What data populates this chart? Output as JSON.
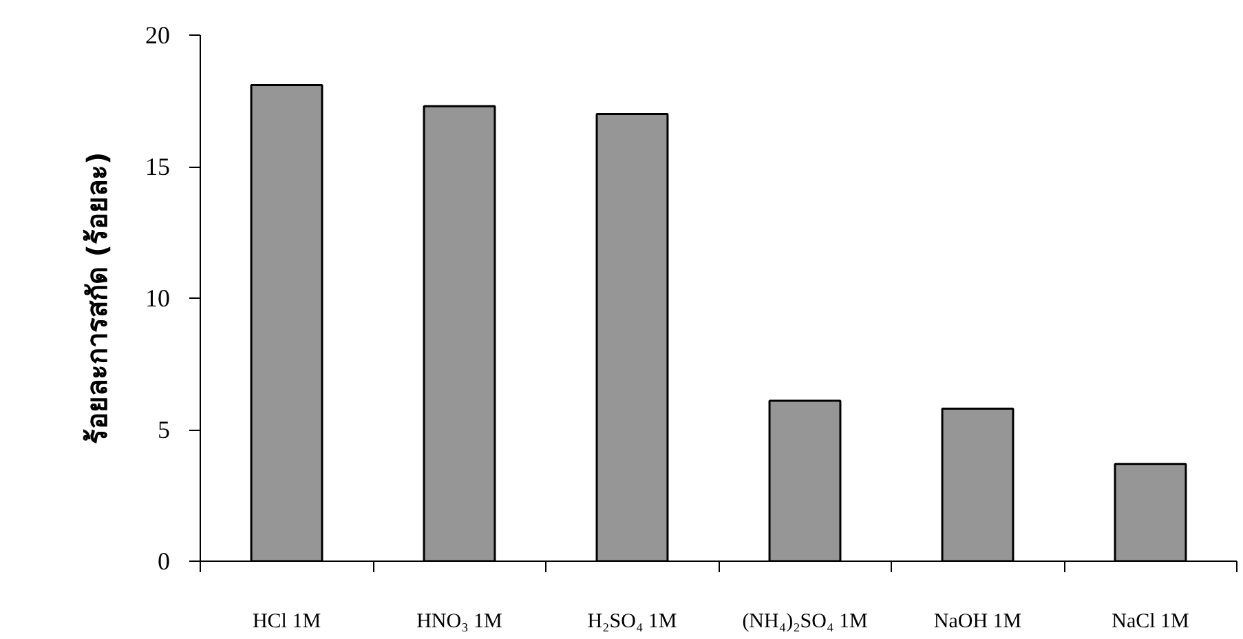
{
  "chart_data": {
    "type": "bar",
    "ylabel": "ร้อยละการสกัด (ร้อยละ)",
    "categories": [
      "HCl 1M",
      "HNO₃ 1M",
      "H₂SO₄ 1M",
      "(NH₄)₂SO₄ 1M",
      "NaOH 1M",
      "NaCl 1M"
    ],
    "values": [
      18.1,
      17.3,
      17.0,
      6.1,
      5.8,
      3.7
    ],
    "color": "#969696",
    "ylim": [
      0,
      20
    ],
    "yticks": [
      0,
      5,
      10,
      15,
      20
    ],
    "grid": false
  }
}
